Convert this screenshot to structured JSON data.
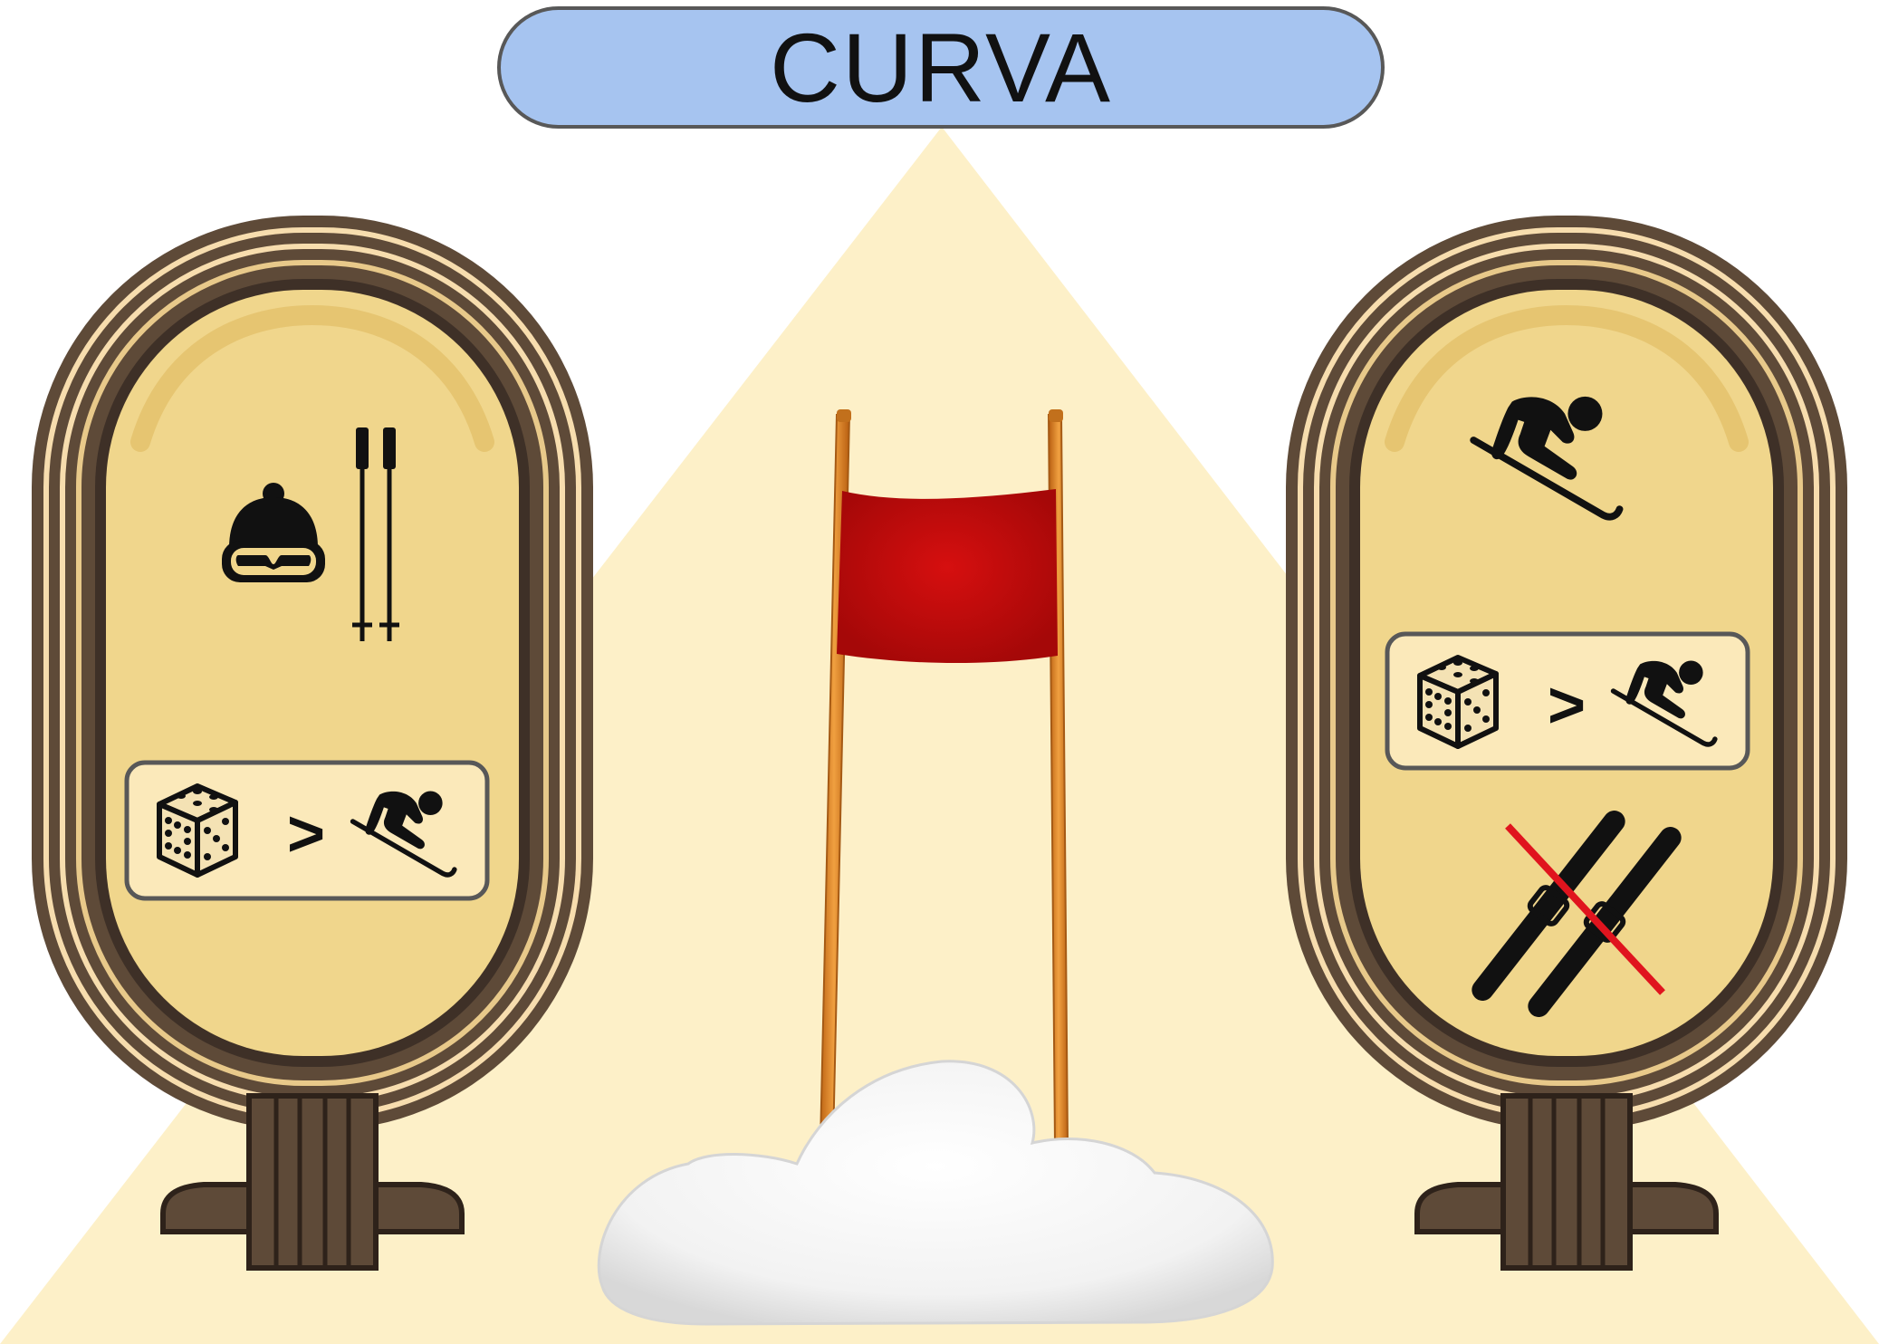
{
  "card": {
    "title": "CURVA",
    "title_bg": "#a6c4f0"
  },
  "colors": {
    "background_triangle": "#fdf0c8",
    "cartouche_fill": "#f0d68c",
    "cartouche_frame": "#5e4a38",
    "cartouche_stripe": "#f7ddae",
    "flag_red": "#c40a0a",
    "pole_orange": "#e3882a",
    "snow": "#f8f8f8"
  },
  "left_cartouche": {
    "icons": [
      "ski-helmet-goggles-icon",
      "ski-poles-icon"
    ],
    "rule_box": {
      "left": "dice-icon",
      "operator": ">",
      "right": "skier-icon"
    }
  },
  "center_gate": {
    "icons": [
      "slalom-gate-flag-icon",
      "snow-mound-icon"
    ]
  },
  "right_cartouche": {
    "icons": [
      "downhill-skier-icon"
    ],
    "rule_box": {
      "left": "dice-icon",
      "operator": ">",
      "right": "skier-icon"
    },
    "penalty": {
      "icon": "skis-crossed-out-icon",
      "strike_color": "#e0141e"
    }
  }
}
